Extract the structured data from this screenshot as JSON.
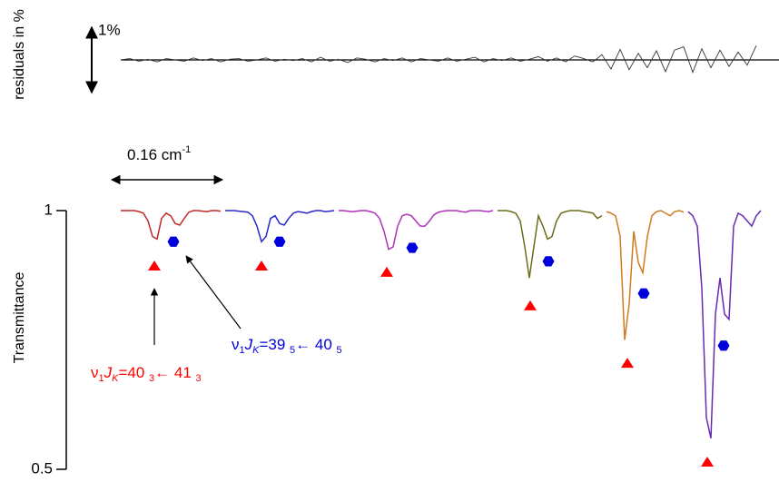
{
  "chart_data": {
    "type": "line",
    "y_label": "Transmittance",
    "ylim": [
      0.5,
      1
    ],
    "yticks": [
      0.5,
      1
    ],
    "residuals_label": "residuals in %",
    "residual_scale": {
      "value": 1,
      "label": "1%"
    },
    "residuals": [
      0,
      0.02,
      -0.02,
      0.01,
      -0.03,
      0.02,
      0,
      -0.02,
      0.03,
      -0.01,
      0.02,
      -0.03,
      0.01,
      0.02,
      -0.02,
      0,
      0.03,
      -0.02,
      0.01,
      -0.01,
      0.02,
      -0.03,
      0.04,
      -0.02,
      0.01,
      -0.04,
      0.03,
      0.01,
      -0.03,
      0.02,
      -0.01,
      0.03,
      -0.03,
      0.02,
      0,
      -0.02,
      0.03,
      -0.02,
      0.01,
      0.04,
      -0.03,
      0.02,
      -0.01,
      0.03,
      -0.02,
      0.01,
      0.05,
      -0.02,
      0.03,
      -0.03,
      0.06,
      0.02,
      -0.03,
      0.08,
      -0.14,
      0.16,
      -0.15,
      0.1,
      -0.12,
      0.14,
      -0.18,
      0.15,
      0.2,
      -0.19,
      0.17,
      -0.12,
      0.15,
      -0.1,
      0.12,
      -0.08,
      0.22
    ],
    "scale_bar": {
      "label": "0.16 cm",
      "superscript": "-1"
    },
    "series": [
      {
        "color": "#c02828",
        "values": [
          1,
          1,
          1,
          1,
          0.998,
          0.995,
          0.98,
          0.95,
          0.945,
          0.985,
          0.995,
          0.99,
          0.975,
          0.972,
          0.985,
          0.997,
          1,
          1,
          0.999,
          0.998,
          1,
          1,
          0.999
        ]
      },
      {
        "color": "#2828c8",
        "values": [
          1,
          1,
          1,
          0.999,
          0.998,
          0.997,
          0.99,
          0.97,
          0.94,
          0.95,
          0.985,
          0.99,
          0.975,
          0.972,
          0.985,
          0.995,
          0.998,
          0.997,
          0.995,
          0.998,
          1,
          1,
          0.998,
          0.999,
          1
        ]
      },
      {
        "color": "#b030b8",
        "values": [
          1,
          1,
          0.999,
          0.998,
          0.999,
          1,
          1,
          0.998,
          0.995,
          0.985,
          0.96,
          0.925,
          0.93,
          0.97,
          0.99,
          0.993,
          0.99,
          0.98,
          0.97,
          0.97,
          0.98,
          0.992,
          0.997,
          0.999,
          1,
          1,
          1,
          0.998,
          0.997,
          1,
          1,
          1,
          0.999,
          0.998,
          1
        ]
      },
      {
        "color": "#6b6b1a",
        "values": [
          1,
          1,
          1,
          0.998,
          0.995,
          0.98,
          0.93,
          0.87,
          0.93,
          0.99,
          0.97,
          0.945,
          0.95,
          0.98,
          0.995,
          0.998,
          1,
          1,
          1,
          0.998,
          0.997,
          0.995,
          0.985,
          0.99
        ]
      },
      {
        "color": "#d07a20",
        "values": [
          0.998,
          0.995,
          0.99,
          0.95,
          0.75,
          0.82,
          0.96,
          0.9,
          0.88,
          0.95,
          0.99,
          0.998,
          1,
          0.995,
          0.99,
          0.998,
          1,
          0.997
        ]
      },
      {
        "color": "#6a2ab0",
        "values": [
          0.998,
          0.99,
          0.97,
          0.85,
          0.6,
          0.56,
          0.8,
          0.87,
          0.8,
          0.79,
          0.97,
          0.995,
          0.99,
          0.98,
          0.97,
          0.99,
          1
        ]
      }
    ],
    "triangles": {
      "color": "#ff0000",
      "x": [
        7.4,
        31,
        58.6,
        90.2,
        111.6,
        129.2
      ],
      "values": [
        0.893,
        0.893,
        0.881,
        0.816,
        0.705,
        0.514
      ]
    },
    "hexagons": {
      "color": "#0000dd",
      "x": [
        11.6,
        35,
        64.2,
        94.2,
        115.2,
        132.8
      ],
      "values": [
        0.94,
        0.94,
        0.928,
        0.902,
        0.84,
        0.739
      ]
    },
    "annotations": [
      {
        "color": "#ff0000",
        "text": [
          "ν",
          "1",
          "J",
          "K",
          "=40 ",
          "3",
          "← 41 ",
          "3"
        ]
      },
      {
        "color": "#0000dd",
        "text": [
          "ν",
          "1",
          "J",
          "K",
          "=39 ",
          "5",
          "← 40 ",
          "5"
        ]
      }
    ]
  }
}
